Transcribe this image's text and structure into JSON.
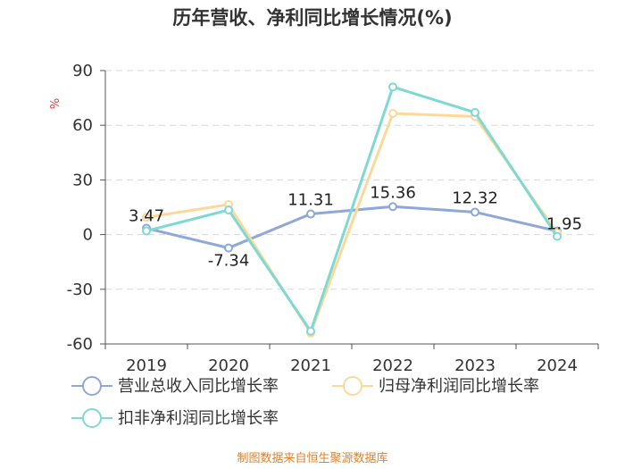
{
  "chart_data": {
    "type": "line",
    "title": "历年营收、净利同比增长情况(%)",
    "ylabel": "%",
    "xlabel": "",
    "categories": [
      "2019",
      "2020",
      "2021",
      "2022",
      "2023",
      "2024"
    ],
    "ylim": [
      -60,
      90
    ],
    "yticks": [
      90,
      60,
      30,
      0,
      -30,
      -60
    ],
    "grid": true,
    "legend_position": "bottom",
    "series": [
      {
        "name": "营业总收入同比增长率",
        "color": "#8fa8d8",
        "values": [
          3.47,
          -7.34,
          11.31,
          15.36,
          12.32,
          1.95
        ],
        "labels": [
          "3.47",
          "-7.34",
          "11.31",
          "15.36",
          "12.32",
          "1.95"
        ]
      },
      {
        "name": "归母净利润同比增长率",
        "color": "#fcd99a",
        "values": [
          9.5,
          16.5,
          -54.0,
          66.5,
          64.8,
          1.0
        ]
      },
      {
        "name": "扣非净利润同比增长率",
        "color": "#7fd8d4",
        "values": [
          2.0,
          13.5,
          -53.0,
          81.0,
          67.0,
          -1.0
        ]
      }
    ]
  },
  "source": "制图数据来自恒生聚源数据库",
  "ylabel_color": "#e53935",
  "source_color": "#e0812c"
}
